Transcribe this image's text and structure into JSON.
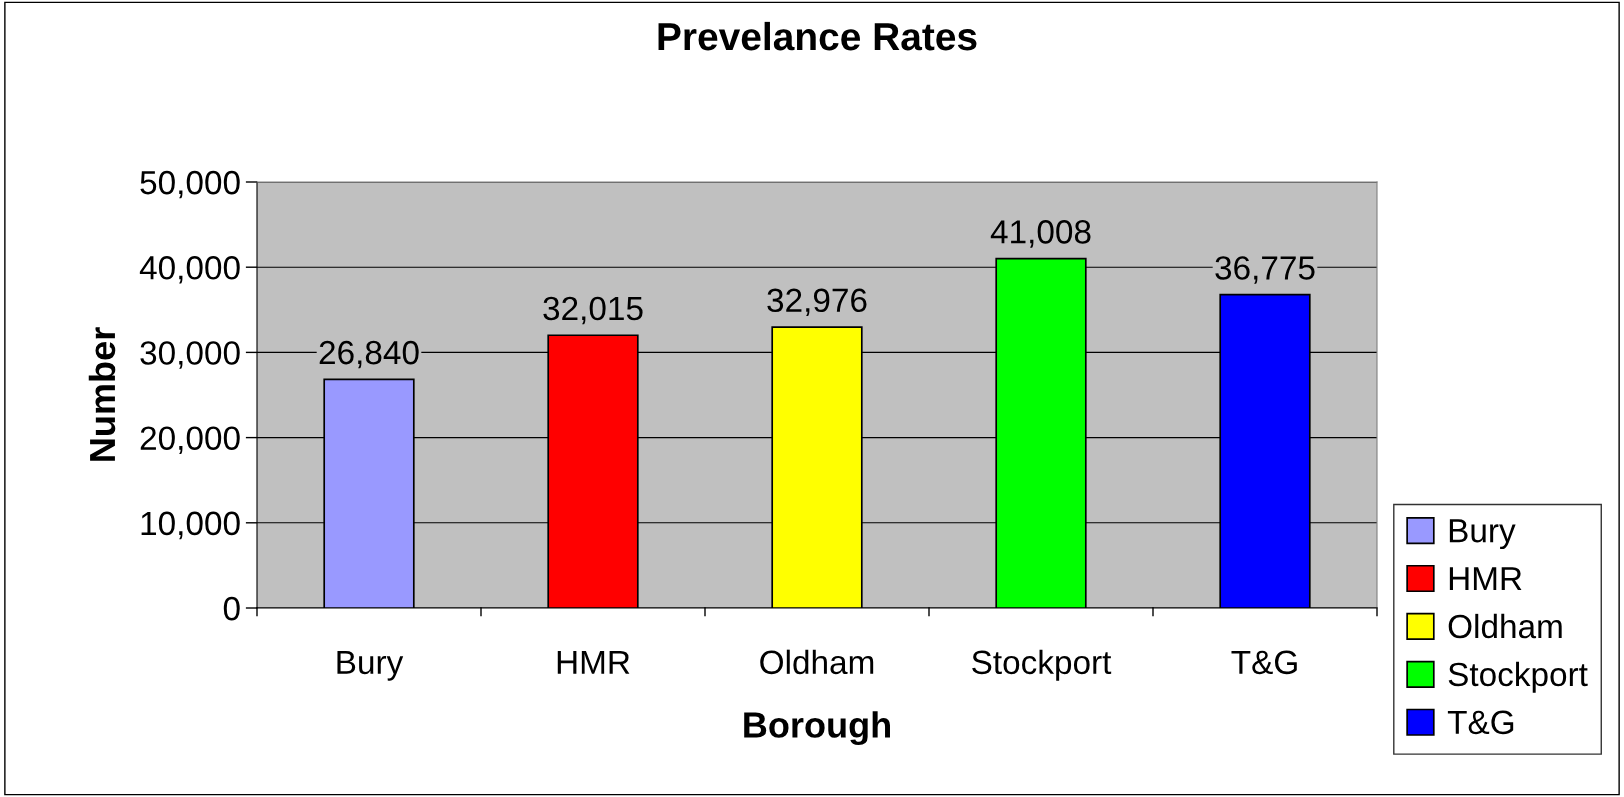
{
  "chart_data": {
    "type": "bar",
    "title": "Prevelance Rates",
    "xlabel": "Borough",
    "ylabel": "Number",
    "categories": [
      "Bury",
      "HMR",
      "Oldham",
      "Stockport",
      "T&G"
    ],
    "series": [
      {
        "name": "Bury",
        "color": "#9999ff",
        "values": [
          26840,
          null,
          null,
          null,
          null
        ],
        "value_labels": [
          "26,840",
          null,
          null,
          null,
          null
        ]
      },
      {
        "name": "HMR",
        "color": "#ff0000",
        "values": [
          null,
          32015,
          null,
          null,
          null
        ],
        "value_labels": [
          null,
          "32,015",
          null,
          null,
          null
        ]
      },
      {
        "name": "Oldham",
        "color": "#ffff00",
        "values": [
          null,
          null,
          32976,
          null,
          null
        ],
        "value_labels": [
          null,
          null,
          "32,976",
          null,
          null
        ]
      },
      {
        "name": "Stockport",
        "color": "#00ff00",
        "values": [
          null,
          null,
          null,
          41008,
          null
        ],
        "value_labels": [
          null,
          null,
          null,
          "41,008",
          null
        ]
      },
      {
        "name": "T&G",
        "color": "#0000ff",
        "values": [
          null,
          null,
          null,
          null,
          36775
        ],
        "value_labels": [
          null,
          null,
          null,
          null,
          "36,775"
        ]
      }
    ],
    "ylim": [
      0,
      50000
    ],
    "yticks": [
      {
        "value": 0,
        "label": "0"
      },
      {
        "value": 10000,
        "label": "10,000"
      },
      {
        "value": 20000,
        "label": "20,000"
      },
      {
        "value": 30000,
        "label": "30,000"
      },
      {
        "value": 40000,
        "label": "40,000"
      },
      {
        "value": 50000,
        "label": "50,000"
      }
    ],
    "grid": "y",
    "legend": "right"
  }
}
